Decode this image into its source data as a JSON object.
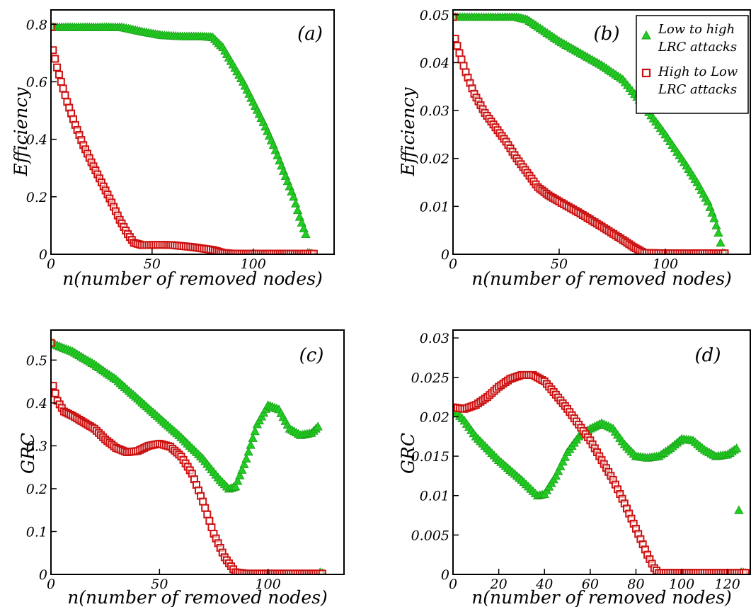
{
  "colors": {
    "low_to_high": "#22cc22",
    "high_to_low": "#cc1111",
    "axis": "#000000"
  },
  "legend": {
    "placement": "top-right of panel (b)",
    "entries": [
      {
        "line1": "Low to high",
        "line2": "LRC attacks",
        "color": "#22cc22",
        "marker": "triangle"
      },
      {
        "line1": "High to Low",
        "line2": "LRC attacks",
        "color": "#cc1111",
        "marker": "square"
      }
    ]
  },
  "chart_data": [
    {
      "type": "scatter",
      "panel": "(a)",
      "xlabel": "n(number of removed nodes)",
      "ylabel": "Efficiency",
      "xlim": [
        0,
        140
      ],
      "ylim": [
        0,
        0.85
      ],
      "xticks": [
        "0",
        "50",
        "100"
      ],
      "xtick_values": [
        0,
        50,
        100
      ],
      "yticks": [
        "0",
        "0.2",
        "0.4",
        "0.6",
        "0.8"
      ],
      "ytick_values": [
        0,
        0.2,
        0.4,
        0.6,
        0.8
      ],
      "series": [
        {
          "key": "low_to_high",
          "marker": "triangle",
          "color": "#22cc22",
          "points": [
            [
              0,
              0.79
            ],
            [
              20,
              0.79
            ],
            [
              35,
              0.79
            ],
            [
              45,
              0.775
            ],
            [
              55,
              0.762
            ],
            [
              65,
              0.758
            ],
            [
              75,
              0.758
            ],
            [
              80,
              0.755
            ],
            [
              85,
              0.72
            ],
            [
              90,
              0.66
            ],
            [
              95,
              0.6
            ],
            [
              100,
              0.53
            ],
            [
              105,
              0.46
            ],
            [
              110,
              0.38
            ],
            [
              115,
              0.29
            ],
            [
              120,
              0.2
            ],
            [
              123,
              0.13
            ],
            [
              126,
              0.07
            ],
            [
              127,
              0.005
            ],
            [
              129,
              0.003
            ]
          ]
        },
        {
          "key": "high_to_low",
          "marker": "square",
          "color": "#cc1111",
          "points": [
            [
              0,
              0.79
            ],
            [
              1,
              0.71
            ],
            [
              3,
              0.65
            ],
            [
              5,
              0.6
            ],
            [
              8,
              0.53
            ],
            [
              12,
              0.45
            ],
            [
              16,
              0.38
            ],
            [
              20,
              0.32
            ],
            [
              25,
              0.25
            ],
            [
              30,
              0.18
            ],
            [
              34,
              0.12
            ],
            [
              38,
              0.07
            ],
            [
              41,
              0.04
            ],
            [
              45,
              0.032
            ],
            [
              55,
              0.033
            ],
            [
              60,
              0.032
            ],
            [
              70,
              0.025
            ],
            [
              80,
              0.015
            ],
            [
              85,
              0.005
            ],
            [
              90,
              0.002
            ],
            [
              110,
              0.002
            ],
            [
              130,
              0.002
            ]
          ]
        }
      ]
    },
    {
      "type": "scatter",
      "panel": "(b)",
      "xlabel": "n(number of removed nodes)",
      "ylabel": "Efficiency",
      "xlim": [
        0,
        140
      ],
      "ylim": [
        0,
        0.051
      ],
      "xticks": [
        "0",
        "50",
        "100"
      ],
      "xtick_values": [
        0,
        50,
        100
      ],
      "yticks": [
        "0",
        "0.01",
        "0.02",
        "0.03",
        "0.04",
        "0.05"
      ],
      "ytick_values": [
        0,
        0.01,
        0.02,
        0.03,
        0.04,
        0.05
      ],
      "series": [
        {
          "key": "low_to_high",
          "marker": "triangle",
          "color": "#22cc22",
          "points": [
            [
              0,
              0.0495
            ],
            [
              10,
              0.0495
            ],
            [
              20,
              0.0495
            ],
            [
              30,
              0.0495
            ],
            [
              35,
              0.049
            ],
            [
              40,
              0.0475
            ],
            [
              50,
              0.0445
            ],
            [
              60,
              0.042
            ],
            [
              70,
              0.0395
            ],
            [
              80,
              0.0365
            ],
            [
              90,
              0.031
            ],
            [
              100,
              0.025
            ],
            [
              110,
              0.0185
            ],
            [
              115,
              0.015
            ],
            [
              120,
              0.011
            ],
            [
              123,
              0.0075
            ],
            [
              125,
              0.0045
            ],
            [
              127,
              0.0003
            ],
            [
              128,
              0.0002
            ]
          ]
        },
        {
          "key": "high_to_low",
          "marker": "square",
          "color": "#cc1111",
          "points": [
            [
              0,
              0.0495
            ],
            [
              1,
              0.045
            ],
            [
              3,
              0.042
            ],
            [
              6,
              0.038
            ],
            [
              10,
              0.0335
            ],
            [
              15,
              0.0295
            ],
            [
              20,
              0.0265
            ],
            [
              25,
              0.0235
            ],
            [
              30,
              0.02
            ],
            [
              35,
              0.017
            ],
            [
              40,
              0.014
            ],
            [
              45,
              0.0123
            ],
            [
              50,
              0.011
            ],
            [
              60,
              0.0085
            ],
            [
              70,
              0.0058
            ],
            [
              80,
              0.003
            ],
            [
              85,
              0.0015
            ],
            [
              90,
              0.0003
            ],
            [
              100,
              0.0002
            ],
            [
              110,
              0.0002
            ],
            [
              128,
              0.0002
            ]
          ]
        }
      ]
    },
    {
      "type": "scatter",
      "panel": "(c)",
      "xlabel": "n(number of removed nodes)",
      "ylabel": "GRC",
      "xlim": [
        0,
        135
      ],
      "ylim": [
        0,
        0.57
      ],
      "xticks": [
        "0",
        "50",
        "100"
      ],
      "xtick_values": [
        0,
        50,
        100
      ],
      "yticks": [
        "0",
        "0.1",
        "0.2",
        "0.3",
        "0.4",
        "0.5"
      ],
      "ytick_values": [
        0,
        0.1,
        0.2,
        0.3,
        0.4,
        0.5
      ],
      "series": [
        {
          "key": "low_to_high",
          "marker": "triangle",
          "color": "#22cc22",
          "points": [
            [
              0,
              0.54
            ],
            [
              10,
              0.52
            ],
            [
              20,
              0.49
            ],
            [
              30,
              0.455
            ],
            [
              40,
              0.41
            ],
            [
              50,
              0.365
            ],
            [
              60,
              0.32
            ],
            [
              70,
              0.27
            ],
            [
              78,
              0.22
            ],
            [
              82,
              0.2
            ],
            [
              85,
              0.205
            ],
            [
              90,
              0.27
            ],
            [
              95,
              0.35
            ],
            [
              100,
              0.395
            ],
            [
              105,
              0.385
            ],
            [
              110,
              0.34
            ],
            [
              115,
              0.325
            ],
            [
              120,
              0.33
            ],
            [
              123,
              0.345
            ],
            [
              124,
              0.005
            ],
            [
              125,
              0.003
            ]
          ]
        },
        {
          "key": "high_to_low",
          "marker": "square",
          "color": "#cc1111",
          "points": [
            [
              0,
              0.54
            ],
            [
              1,
              0.44
            ],
            [
              3,
              0.405
            ],
            [
              6,
              0.38
            ],
            [
              10,
              0.37
            ],
            [
              15,
              0.355
            ],
            [
              20,
              0.34
            ],
            [
              25,
              0.315
            ],
            [
              30,
              0.295
            ],
            [
              35,
              0.285
            ],
            [
              40,
              0.288
            ],
            [
              45,
              0.3
            ],
            [
              50,
              0.305
            ],
            [
              55,
              0.298
            ],
            [
              60,
              0.275
            ],
            [
              65,
              0.235
            ],
            [
              70,
              0.17
            ],
            [
              75,
              0.095
            ],
            [
              80,
              0.04
            ],
            [
              85,
              0.005
            ],
            [
              90,
              0.002
            ],
            [
              100,
              0.002
            ],
            [
              125,
              0.002
            ]
          ]
        }
      ]
    },
    {
      "type": "scatter",
      "panel": "(d)",
      "xlabel": "n(number of removed nodes)",
      "ylabel": "GRC",
      "xlim": [
        0,
        130
      ],
      "ylim": [
        0,
        0.031
      ],
      "xticks": [
        "0",
        "20",
        "40",
        "60",
        "80",
        "100",
        "120"
      ],
      "xtick_values": [
        0,
        20,
        40,
        60,
        80,
        100,
        120
      ],
      "yticks": [
        "0",
        "0.005",
        "0.01",
        "0.015",
        "0.02",
        "0.025",
        "0.03"
      ],
      "ytick_values": [
        0,
        0.005,
        0.01,
        0.015,
        0.02,
        0.025,
        0.03
      ],
      "series": [
        {
          "key": "low_to_high",
          "marker": "triangle",
          "color": "#22cc22",
          "points": [
            [
              0,
              0.021
            ],
            [
              5,
              0.0195
            ],
            [
              10,
              0.0175
            ],
            [
              20,
              0.0145
            ],
            [
              30,
              0.012
            ],
            [
              37,
              0.01
            ],
            [
              40,
              0.0102
            ],
            [
              45,
              0.0125
            ],
            [
              50,
              0.0155
            ],
            [
              55,
              0.0175
            ],
            [
              60,
              0.0185
            ],
            [
              65,
              0.0192
            ],
            [
              70,
              0.0185
            ],
            [
              75,
              0.0165
            ],
            [
              80,
              0.015
            ],
            [
              85,
              0.0148
            ],
            [
              90,
              0.015
            ],
            [
              95,
              0.016
            ],
            [
              100,
              0.0172
            ],
            [
              105,
              0.017
            ],
            [
              110,
              0.0158
            ],
            [
              115,
              0.015
            ],
            [
              120,
              0.0152
            ],
            [
              124,
              0.016
            ],
            [
              126,
              0.0003
            ],
            [
              128,
              0.0002
            ]
          ]
        },
        {
          "key": "high_to_low",
          "marker": "square",
          "color": "#cc1111",
          "points": [
            [
              0,
              0.0212
            ],
            [
              5,
              0.021
            ],
            [
              10,
              0.0215
            ],
            [
              15,
              0.0225
            ],
            [
              20,
              0.0238
            ],
            [
              25,
              0.0248
            ],
            [
              30,
              0.0253
            ],
            [
              35,
              0.0253
            ],
            [
              40,
              0.0245
            ],
            [
              45,
              0.0228
            ],
            [
              50,
              0.021
            ],
            [
              55,
              0.019
            ],
            [
              60,
              0.017
            ],
            [
              65,
              0.0145
            ],
            [
              70,
              0.012
            ],
            [
              75,
              0.009
            ],
            [
              80,
              0.0058
            ],
            [
              85,
              0.0025
            ],
            [
              88,
              0.0008
            ],
            [
              90,
              0.0002
            ],
            [
              100,
              0.0002
            ],
            [
              110,
              0.0002
            ],
            [
              128,
              0.0002
            ]
          ]
        }
      ]
    }
  ]
}
